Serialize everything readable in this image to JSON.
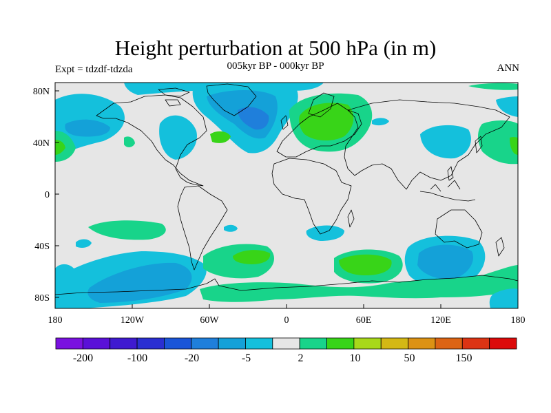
{
  "header": {
    "title": "Height perturbation at 500 hPa (in m)",
    "subtitle": "005kyr BP - 000kyr BP",
    "left_label": "Expt = tdzdf-tdzda",
    "right_label": "ANN"
  },
  "map": {
    "lat_ticks": [
      "80N",
      "40N",
      "0",
      "40S",
      "80S"
    ],
    "lon_ticks": [
      "180",
      "120W",
      "60W",
      "0",
      "60E",
      "120E",
      "180"
    ],
    "ocean_color": "#e6e6e6",
    "coast_color": "#000000"
  },
  "colorbar": {
    "labels": [
      "-200",
      "-100",
      "-20",
      "-5",
      "2",
      "10",
      "50",
      "150"
    ],
    "colors": [
      "#7a12e0",
      "#5a10d8",
      "#3f1ad0",
      "#2a2fd2",
      "#1a55d8",
      "#1f7fdb",
      "#14a1d8",
      "#14c0dc",
      "#e6e6e6",
      "#18d48a",
      "#38d418",
      "#a8d81a",
      "#d4b814",
      "#dc9214",
      "#dc6414",
      "#dc3414",
      "#dc0a0a"
    ]
  }
}
